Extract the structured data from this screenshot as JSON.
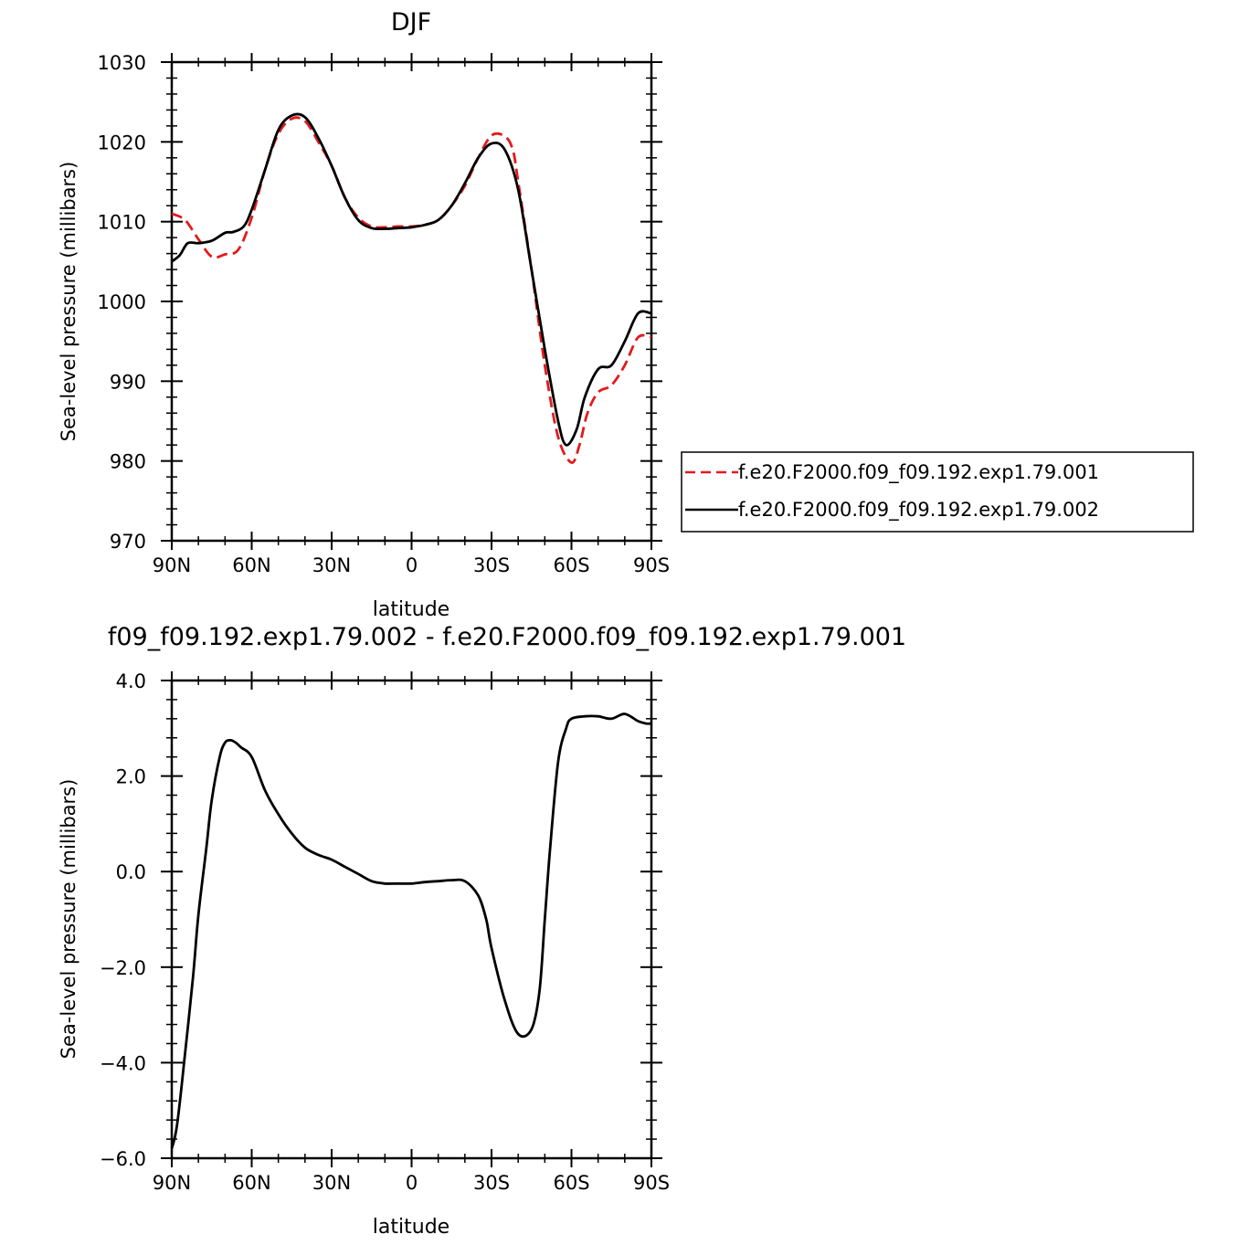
{
  "chart_data": [
    {
      "type": "line",
      "title": "DJF",
      "xlabel": "latitude",
      "ylabel": "Sea-level pressure (millibars)",
      "xlim": [
        90,
        -90
      ],
      "ylim": [
        970,
        1030
      ],
      "xticks": [
        90,
        60,
        30,
        0,
        -30,
        -60,
        -90
      ],
      "xtick_labels": [
        "90N",
        "60N",
        "30N",
        "0",
        "30S",
        "60S",
        "90S"
      ],
      "yticks": [
        970,
        980,
        990,
        1000,
        1010,
        1020,
        1030
      ],
      "ytick_labels": [
        "970",
        "980",
        "990",
        "1000",
        "1010",
        "1020",
        "1030"
      ],
      "legend_position": "right",
      "grid": false,
      "series": [
        {
          "name": "f.e20.F2000.f09_f09.192.exp1.79.001",
          "color": "#e31a1c",
          "dash": "dashed",
          "x": [
            90,
            85,
            80,
            75,
            70,
            65,
            60,
            55,
            50,
            45,
            40,
            35,
            30,
            25,
            20,
            15,
            10,
            5,
            0,
            -5,
            -10,
            -15,
            -20,
            -25,
            -30,
            -35,
            -38,
            -40,
            -45,
            -50,
            -55,
            -60,
            -63,
            -66,
            -70,
            -75,
            -80,
            -85,
            -90
          ],
          "y": [
            1011,
            1010.2,
            1007.8,
            1005.6,
            1005.9,
            1006.5,
            1010.5,
            1016.5,
            1021,
            1022.9,
            1022.6,
            1020,
            1017,
            1013,
            1010.5,
            1009.4,
            1009.3,
            1009.4,
            1009.4,
            1009.6,
            1010.2,
            1012,
            1014.5,
            1018,
            1020.8,
            1020.7,
            1019,
            1015,
            1004,
            992,
            983,
            979.8,
            982,
            986,
            988.6,
            989.5,
            992,
            995.5,
            995.5
          ]
        },
        {
          "name": "f.e20.F2000.f09_f09.192.exp1.79.002",
          "color": "#000000",
          "dash": "solid",
          "x": [
            90,
            87,
            84,
            80,
            75,
            70,
            67,
            63,
            60,
            55,
            50,
            45,
            40,
            35,
            30,
            25,
            20,
            15,
            10,
            5,
            0,
            -5,
            -10,
            -15,
            -20,
            -25,
            -30,
            -35,
            -40,
            -45,
            -50,
            -55,
            -58,
            -62,
            -65,
            -70,
            -75,
            -80,
            -85,
            -90
          ],
          "y": [
            1005,
            1005.8,
            1007.3,
            1007.3,
            1007.6,
            1008.6,
            1008.7,
            1009.4,
            1011.5,
            1016.5,
            1021.5,
            1023.3,
            1023.1,
            1020.5,
            1017,
            1013,
            1010.2,
            1009.2,
            1009.1,
            1009.2,
            1009.3,
            1009.6,
            1010.2,
            1012,
            1014.8,
            1018,
            1019.8,
            1019,
            1014,
            1004,
            994,
            985,
            982,
            984,
            988,
            991.5,
            992,
            995,
            998.5,
            998.5
          ]
        }
      ]
    },
    {
      "type": "line",
      "title": "f09_f09.192.exp1.79.002 - f.e20.F2000.f09_f09.192.exp1.79.001",
      "xlabel": "latitude",
      "ylabel": "Sea-level pressure (millibars)",
      "xlim": [
        90,
        -90
      ],
      "ylim": [
        -6,
        4
      ],
      "xticks": [
        90,
        60,
        30,
        0,
        -30,
        -60,
        -90
      ],
      "xtick_labels": [
        "90N",
        "60N",
        "30N",
        "0",
        "30S",
        "60S",
        "90S"
      ],
      "yticks": [
        -6,
        -4,
        -2,
        0,
        2,
        4
      ],
      "ytick_labels": [
        "−6.0",
        "−4.0",
        "−2.0",
        "0.0",
        "2.0",
        "4.0"
      ],
      "grid": false,
      "series": [
        {
          "color": "#000000",
          "dash": "solid",
          "x": [
            90,
            88,
            85,
            82,
            80,
            77,
            75,
            72,
            70,
            68,
            66,
            64,
            60,
            55,
            50,
            45,
            40,
            35,
            30,
            25,
            20,
            15,
            10,
            5,
            0,
            -5,
            -10,
            -15,
            -20,
            -25,
            -28,
            -30,
            -35,
            -40,
            -45,
            -48,
            -50,
            -52,
            -55,
            -58,
            -60,
            -65,
            -70,
            -75,
            -80,
            -85,
            -88,
            -90
          ],
          "y": [
            -5.8,
            -5.3,
            -3.8,
            -2.2,
            -0.9,
            0.5,
            1.5,
            2.4,
            2.7,
            2.75,
            2.7,
            2.6,
            2.4,
            1.7,
            1.2,
            0.8,
            0.5,
            0.35,
            0.25,
            0.1,
            -0.05,
            -0.2,
            -0.25,
            -0.25,
            -0.25,
            -0.22,
            -0.2,
            -0.18,
            -0.2,
            -0.5,
            -1.0,
            -1.6,
            -2.7,
            -3.4,
            -3.3,
            -2.5,
            -1.0,
            0.5,
            2.3,
            3.0,
            3.2,
            3.25,
            3.25,
            3.2,
            3.3,
            3.15,
            3.1,
            3.1
          ]
        }
      ]
    }
  ]
}
